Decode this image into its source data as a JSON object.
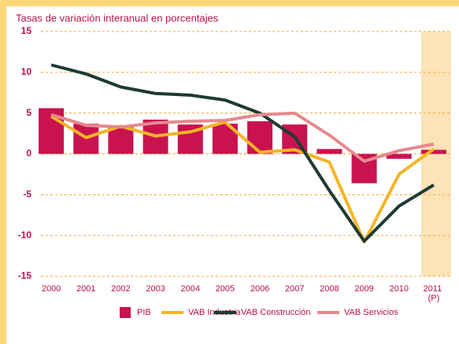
{
  "chart_data": {
    "type": "bar_line",
    "title": "Tasas de variación interanual en porcentajes",
    "categories": [
      "2000",
      "2001",
      "2002",
      "2003",
      "2004",
      "2005",
      "2006",
      "2007",
      "2008",
      "2009",
      "2010",
      "2011 (P)"
    ],
    "series": [
      {
        "name": "PIB",
        "type": "bar",
        "color": "#c8134f",
        "values": [
          5.6,
          3.7,
          3.3,
          4.2,
          3.6,
          3.7,
          4.0,
          3.6,
          0.6,
          -3.6,
          -0.6,
          0.5
        ]
      },
      {
        "name": "VAB Industria",
        "type": "line",
        "color": "#f5b526",
        "values": [
          4.6,
          2.0,
          3.4,
          2.2,
          2.7,
          3.9,
          0.2,
          0.5,
          -1.0,
          -10.8,
          -2.5,
          0.6
        ]
      },
      {
        "name": "VAB Construcción",
        "type": "line",
        "color": "#1e3b32",
        "values": [
          10.9,
          9.8,
          8.2,
          7.4,
          7.2,
          6.6,
          5.0,
          2.1,
          -4.5,
          -10.7,
          -6.4,
          -3.8
        ]
      },
      {
        "name": "VAB Servicios",
        "type": "line",
        "color": "#e6898e",
        "values": [
          4.8,
          3.5,
          3.3,
          3.8,
          4.0,
          4.1,
          4.8,
          5.0,
          2.3,
          -0.9,
          0.4,
          1.2
        ]
      }
    ],
    "ylim": [
      -15,
      15
    ],
    "yticks": [
      15,
      10,
      5,
      0,
      -5,
      -10,
      -15
    ],
    "grid": true,
    "highlight_category": 11,
    "highlight_color": "#fde3b8"
  }
}
